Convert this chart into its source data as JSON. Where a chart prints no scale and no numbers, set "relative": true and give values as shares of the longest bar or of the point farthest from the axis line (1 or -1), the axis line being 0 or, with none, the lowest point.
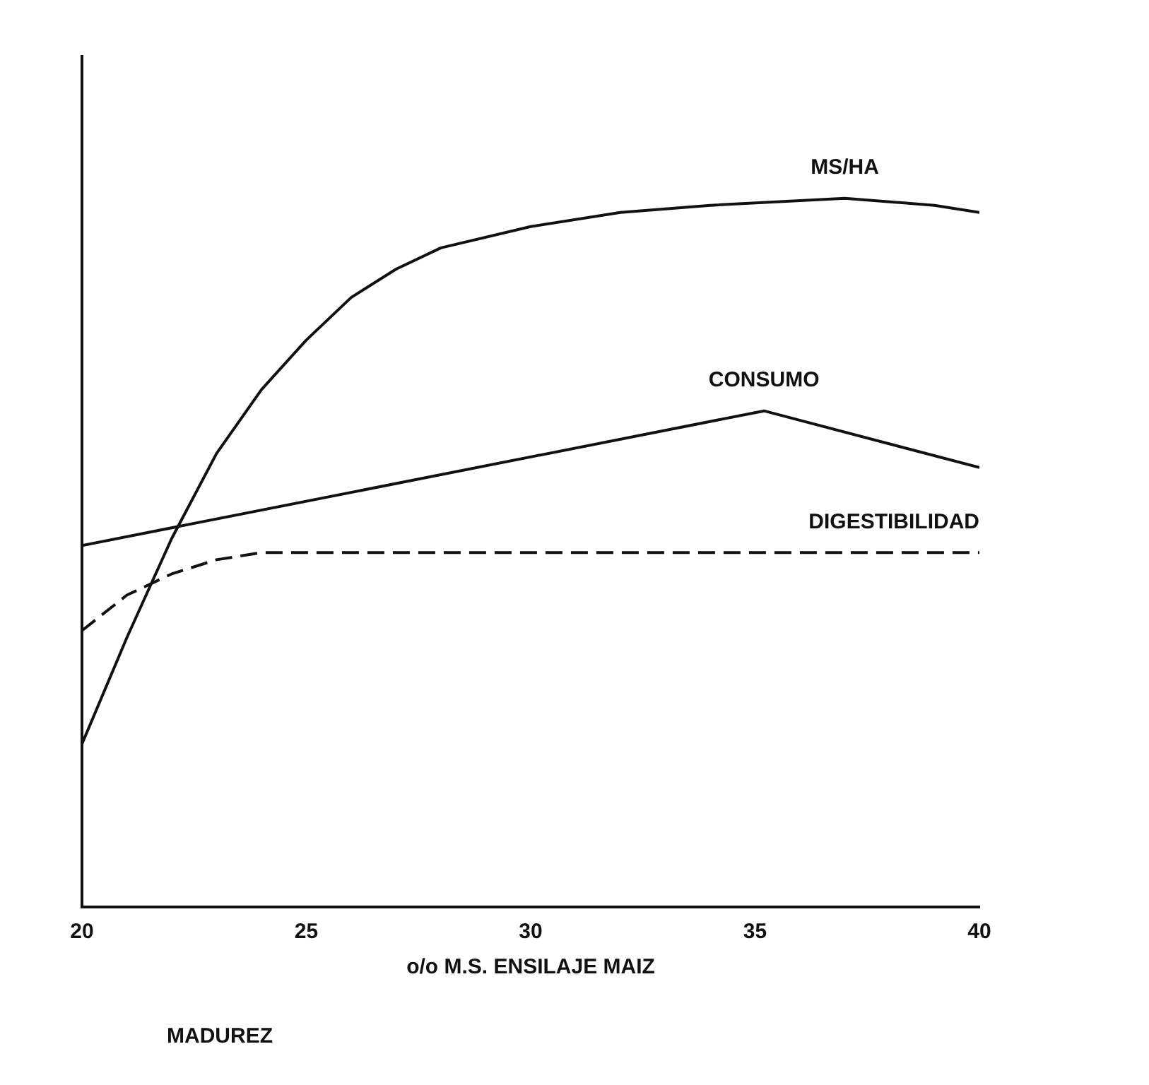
{
  "chart_data": {
    "type": "line",
    "xlabel": "o/o M.S. ENSILAJE MAIZ",
    "relative": true,
    "xlim": [
      20,
      40
    ],
    "xticks": [
      20,
      25,
      30,
      35,
      40
    ],
    "tick_labels": "x",
    "grid": false,
    "legend": false,
    "marker": "none",
    "annotations": [
      "MADUREZ"
    ],
    "series": [
      {
        "name": "MS/HA",
        "color": "#111111",
        "line_style": "solid",
        "x": [
          20,
          21,
          22,
          23,
          24,
          25,
          26,
          27,
          28,
          30,
          32,
          34,
          37,
          39,
          40
        ],
        "values": [
          0.23,
          0.38,
          0.52,
          0.64,
          0.73,
          0.8,
          0.86,
          0.9,
          0.93,
          0.96,
          0.98,
          0.99,
          1,
          0.99,
          0.98
        ]
      },
      {
        "name": "CONSUMO",
        "color": "#111111",
        "line_style": "solid",
        "x": [
          20,
          35.2,
          40
        ],
        "values": [
          0.51,
          0.7,
          0.62
        ]
      },
      {
        "name": "DIGESTIBILIDAD",
        "color": "#111111",
        "line_style": "dashed",
        "x": [
          20,
          21,
          22,
          23,
          24,
          25,
          40
        ],
        "values": [
          0.39,
          0.44,
          0.47,
          0.49,
          0.5,
          0.5,
          0.5
        ]
      }
    ]
  }
}
